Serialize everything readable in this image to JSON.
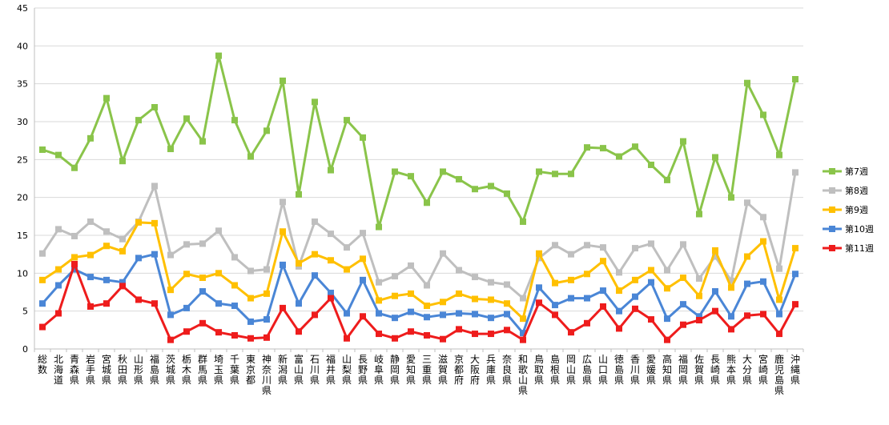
{
  "chart_data": {
    "type": "line",
    "title": "",
    "xlabel": "",
    "ylabel": "",
    "ylim": [
      0,
      45
    ],
    "yticks": [
      0,
      5,
      10,
      15,
      20,
      25,
      30,
      35,
      40,
      45
    ],
    "grid": true,
    "legend_position": "right",
    "categories": [
      "総数",
      "北海道",
      "青森県",
      "岩手県",
      "宮城県",
      "秋田県",
      "山形県",
      "福島県",
      "茨城県",
      "栃木県",
      "群馬県",
      "埼玉県",
      "千葉県",
      "東京都",
      "神奈川県",
      "新潟県",
      "富山県",
      "石川県",
      "福井県",
      "山梨県",
      "長野県",
      "岐阜県",
      "静岡県",
      "愛知県",
      "三重県",
      "滋賀県",
      "京都府",
      "大阪府",
      "兵庫県",
      "奈良県",
      "和歌山県",
      "鳥取県",
      "島根県",
      "岡山県",
      "広島県",
      "山口県",
      "徳島県",
      "香川県",
      "愛媛県",
      "高知県",
      "福岡県",
      "佐賀県",
      "長崎県",
      "熊本県",
      "大分県",
      "宮崎県",
      "鹿児島県",
      "沖縄県"
    ],
    "series": [
      {
        "name": "第7週",
        "color": "#8ac44a",
        "marker": "square",
        "values": [
          26.3,
          25.6,
          23.9,
          27.8,
          33.1,
          24.8,
          30.2,
          31.9,
          26.4,
          30.4,
          27.4,
          38.7,
          30.2,
          25.4,
          28.8,
          35.4,
          20.4,
          32.6,
          23.6,
          30.2,
          27.9,
          16.1,
          23.4,
          22.8,
          19.3,
          23.4,
          22.4,
          21.1,
          21.5,
          20.5,
          16.8,
          23.4,
          23.1,
          23.1,
          26.6,
          26.5,
          25.4,
          26.7,
          24.3,
          22.3,
          27.4,
          17.8,
          25.3,
          20.0,
          35.1,
          30.9,
          25.6,
          35.6
        ]
      },
      {
        "name": "第8週",
        "color": "#bfbfbf",
        "marker": "square",
        "values": [
          12.6,
          15.8,
          14.9,
          16.8,
          15.5,
          14.5,
          16.8,
          21.5,
          12.4,
          13.8,
          13.9,
          15.6,
          12.1,
          10.3,
          10.5,
          19.4,
          10.9,
          16.8,
          15.2,
          13.4,
          15.3,
          8.8,
          9.6,
          11.0,
          8.4,
          12.6,
          10.4,
          9.5,
          8.8,
          8.5,
          6.7,
          12.0,
          13.7,
          12.5,
          13.7,
          13.4,
          10.1,
          13.3,
          13.9,
          10.4,
          13.8,
          9.3,
          12.2,
          9.0,
          19.3,
          17.4,
          10.6,
          23.3
        ]
      },
      {
        "name": "第9週",
        "color": "#ffc000",
        "marker": "square",
        "values": [
          9.1,
          10.5,
          12.1,
          12.4,
          13.6,
          12.9,
          16.7,
          16.6,
          7.8,
          9.9,
          9.4,
          10.0,
          8.4,
          6.7,
          7.3,
          15.5,
          11.3,
          12.5,
          11.7,
          10.5,
          11.9,
          6.4,
          7.0,
          7.3,
          5.7,
          6.2,
          7.3,
          6.6,
          6.5,
          6.0,
          4.0,
          12.6,
          8.7,
          9.1,
          9.9,
          11.6,
          7.7,
          9.1,
          10.4,
          8.0,
          9.4,
          7.0,
          13.0,
          8.1,
          12.2,
          14.2,
          6.5,
          13.3
        ]
      },
      {
        "name": "第10週",
        "color": "#4a86d6",
        "marker": "square",
        "values": [
          6.0,
          8.4,
          10.5,
          9.5,
          9.1,
          8.8,
          12.0,
          12.5,
          4.5,
          5.4,
          7.6,
          6.0,
          5.7,
          3.6,
          3.9,
          11.1,
          6.0,
          9.7,
          7.4,
          4.7,
          9.1,
          4.7,
          4.1,
          4.9,
          4.2,
          4.5,
          4.7,
          4.6,
          4.1,
          4.6,
          2.1,
          8.1,
          5.8,
          6.7,
          6.7,
          7.7,
          5.0,
          6.9,
          8.8,
          4.0,
          5.9,
          4.3,
          7.6,
          4.3,
          8.6,
          8.9,
          4.6,
          9.9
        ]
      },
      {
        "name": "第11週",
        "color": "#ee1c1c",
        "marker": "square",
        "values": [
          2.9,
          4.7,
          11.2,
          5.6,
          6.0,
          8.3,
          6.5,
          6.0,
          1.2,
          2.3,
          3.4,
          2.2,
          1.8,
          1.4,
          1.5,
          5.4,
          2.3,
          4.5,
          6.7,
          1.4,
          4.3,
          2.0,
          1.4,
          2.3,
          1.8,
          1.3,
          2.6,
          2.0,
          2.0,
          2.5,
          1.2,
          6.1,
          4.5,
          2.2,
          3.4,
          5.6,
          2.7,
          5.3,
          3.9,
          1.2,
          3.2,
          3.8,
          5.0,
          2.6,
          4.4,
          4.6,
          2.0,
          5.9
        ]
      }
    ]
  }
}
